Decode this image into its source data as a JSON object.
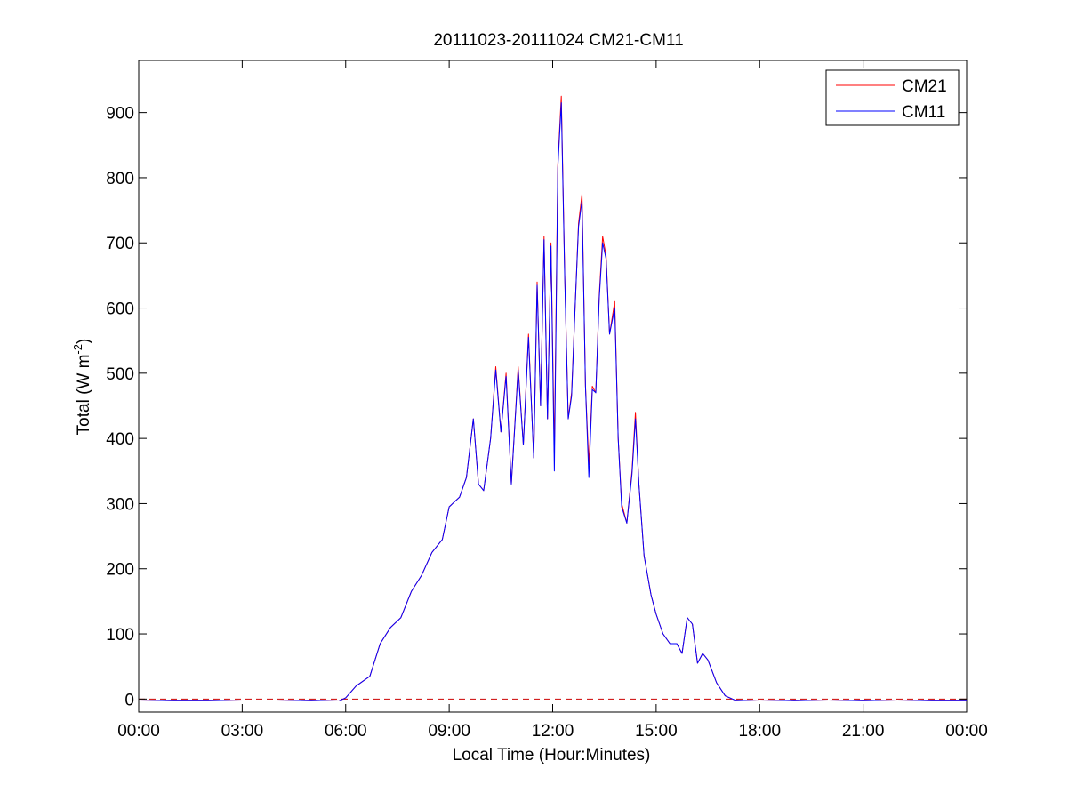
{
  "chart_data": {
    "type": "line",
    "title": "20111023-20111024 CM21-CM11",
    "xlabel": "Local Time (Hour:Minutes)",
    "ylabel": {
      "text": "Total (W m",
      "superscript": "-2",
      "suffix": ")"
    },
    "xlim": [
      0,
      24
    ],
    "ylim": [
      -20,
      980
    ],
    "x_ticks": [
      0,
      3,
      6,
      9,
      12,
      15,
      18,
      21,
      24
    ],
    "x_tick_labels": [
      "00:00",
      "03:00",
      "06:00",
      "09:00",
      "12:00",
      "15:00",
      "18:00",
      "21:00",
      "00:00"
    ],
    "y_ticks": [
      0,
      100,
      200,
      300,
      400,
      500,
      600,
      700,
      800,
      900
    ],
    "y_tick_labels": [
      "0",
      "100",
      "200",
      "300",
      "400",
      "500",
      "600",
      "700",
      "800",
      "900"
    ],
    "grid": false,
    "legend_position": "top-right",
    "reference_line": {
      "y": 0,
      "style": "dashed",
      "color": "#cc0000"
    },
    "series": [
      {
        "name": "CM21",
        "color": "#ff0000",
        "points": [
          [
            0,
            -3
          ],
          [
            1,
            -2
          ],
          [
            2,
            -2
          ],
          [
            3,
            -3
          ],
          [
            4,
            -3
          ],
          [
            5,
            -2
          ],
          [
            5.8,
            -3
          ],
          [
            6,
            2
          ],
          [
            6.3,
            20
          ],
          [
            6.7,
            35
          ],
          [
            7,
            85
          ],
          [
            7.3,
            110
          ],
          [
            7.6,
            125
          ],
          [
            7.9,
            165
          ],
          [
            8.2,
            190
          ],
          [
            8.5,
            225
          ],
          [
            8.8,
            245
          ],
          [
            9,
            295
          ],
          [
            9.3,
            310
          ],
          [
            9.5,
            340
          ],
          [
            9.7,
            430
          ],
          [
            9.85,
            330
          ],
          [
            10,
            320
          ],
          [
            10.2,
            400
          ],
          [
            10.35,
            510
          ],
          [
            10.5,
            410
          ],
          [
            10.65,
            500
          ],
          [
            10.8,
            330
          ],
          [
            11,
            510
          ],
          [
            11.15,
            390
          ],
          [
            11.3,
            560
          ],
          [
            11.45,
            370
          ],
          [
            11.55,
            640
          ],
          [
            11.65,
            450
          ],
          [
            11.75,
            710
          ],
          [
            11.85,
            430
          ],
          [
            11.95,
            700
          ],
          [
            12.05,
            380
          ],
          [
            12.15,
            820
          ],
          [
            12.25,
            925
          ],
          [
            12.35,
            650
          ],
          [
            12.45,
            430
          ],
          [
            12.55,
            470
          ],
          [
            12.65,
            600
          ],
          [
            12.75,
            730
          ],
          [
            12.85,
            775
          ],
          [
            12.95,
            480
          ],
          [
            13.05,
            360
          ],
          [
            13.15,
            480
          ],
          [
            13.25,
            470
          ],
          [
            13.35,
            620
          ],
          [
            13.45,
            710
          ],
          [
            13.55,
            680
          ],
          [
            13.65,
            560
          ],
          [
            13.8,
            610
          ],
          [
            13.9,
            400
          ],
          [
            14,
            300
          ],
          [
            14.15,
            270
          ],
          [
            14.3,
            350
          ],
          [
            14.4,
            440
          ],
          [
            14.5,
            330
          ],
          [
            14.65,
            220
          ],
          [
            14.85,
            160
          ],
          [
            15,
            130
          ],
          [
            15.2,
            100
          ],
          [
            15.4,
            85
          ],
          [
            15.6,
            85
          ],
          [
            15.75,
            70
          ],
          [
            15.9,
            125
          ],
          [
            16.05,
            115
          ],
          [
            16.2,
            55
          ],
          [
            16.35,
            70
          ],
          [
            16.5,
            60
          ],
          [
            16.75,
            25
          ],
          [
            17,
            5
          ],
          [
            17.3,
            -2
          ],
          [
            18,
            -3
          ],
          [
            19,
            -2
          ],
          [
            20,
            -3
          ],
          [
            21,
            -2
          ],
          [
            22,
            -3
          ],
          [
            23,
            -2
          ],
          [
            24,
            -2
          ]
        ]
      },
      {
        "name": "CM11",
        "color": "#0000ff",
        "points": [
          [
            0,
            -3
          ],
          [
            1,
            -2
          ],
          [
            2,
            -2
          ],
          [
            3,
            -3
          ],
          [
            4,
            -3
          ],
          [
            5,
            -2
          ],
          [
            5.8,
            -3
          ],
          [
            6,
            2
          ],
          [
            6.3,
            20
          ],
          [
            6.7,
            35
          ],
          [
            7,
            85
          ],
          [
            7.3,
            110
          ],
          [
            7.6,
            125
          ],
          [
            7.9,
            165
          ],
          [
            8.2,
            190
          ],
          [
            8.5,
            225
          ],
          [
            8.8,
            245
          ],
          [
            9,
            295
          ],
          [
            9.3,
            310
          ],
          [
            9.5,
            340
          ],
          [
            9.7,
            430
          ],
          [
            9.85,
            330
          ],
          [
            10,
            320
          ],
          [
            10.2,
            400
          ],
          [
            10.35,
            505
          ],
          [
            10.5,
            410
          ],
          [
            10.65,
            495
          ],
          [
            10.8,
            330
          ],
          [
            11,
            505
          ],
          [
            11.15,
            390
          ],
          [
            11.3,
            555
          ],
          [
            11.45,
            370
          ],
          [
            11.55,
            635
          ],
          [
            11.65,
            450
          ],
          [
            11.75,
            705
          ],
          [
            11.85,
            430
          ],
          [
            11.95,
            695
          ],
          [
            12.05,
            350
          ],
          [
            12.15,
            815
          ],
          [
            12.25,
            915
          ],
          [
            12.35,
            645
          ],
          [
            12.45,
            430
          ],
          [
            12.55,
            465
          ],
          [
            12.65,
            600
          ],
          [
            12.75,
            725
          ],
          [
            12.85,
            765
          ],
          [
            12.95,
            480
          ],
          [
            13.05,
            340
          ],
          [
            13.15,
            475
          ],
          [
            13.25,
            470
          ],
          [
            13.35,
            615
          ],
          [
            13.45,
            700
          ],
          [
            13.55,
            675
          ],
          [
            13.65,
            560
          ],
          [
            13.8,
            600
          ],
          [
            13.9,
            400
          ],
          [
            14,
            295
          ],
          [
            14.15,
            270
          ],
          [
            14.3,
            345
          ],
          [
            14.4,
            430
          ],
          [
            14.5,
            330
          ],
          [
            14.65,
            220
          ],
          [
            14.85,
            160
          ],
          [
            15,
            130
          ],
          [
            15.2,
            100
          ],
          [
            15.4,
            85
          ],
          [
            15.6,
            85
          ],
          [
            15.75,
            70
          ],
          [
            15.9,
            125
          ],
          [
            16.05,
            115
          ],
          [
            16.2,
            55
          ],
          [
            16.35,
            70
          ],
          [
            16.5,
            60
          ],
          [
            16.75,
            25
          ],
          [
            17,
            5
          ],
          [
            17.3,
            -2
          ],
          [
            18,
            -3
          ],
          [
            19,
            -2
          ],
          [
            20,
            -3
          ],
          [
            21,
            -2
          ],
          [
            22,
            -3
          ],
          [
            23,
            -2
          ],
          [
            24,
            -2
          ]
        ]
      }
    ]
  }
}
